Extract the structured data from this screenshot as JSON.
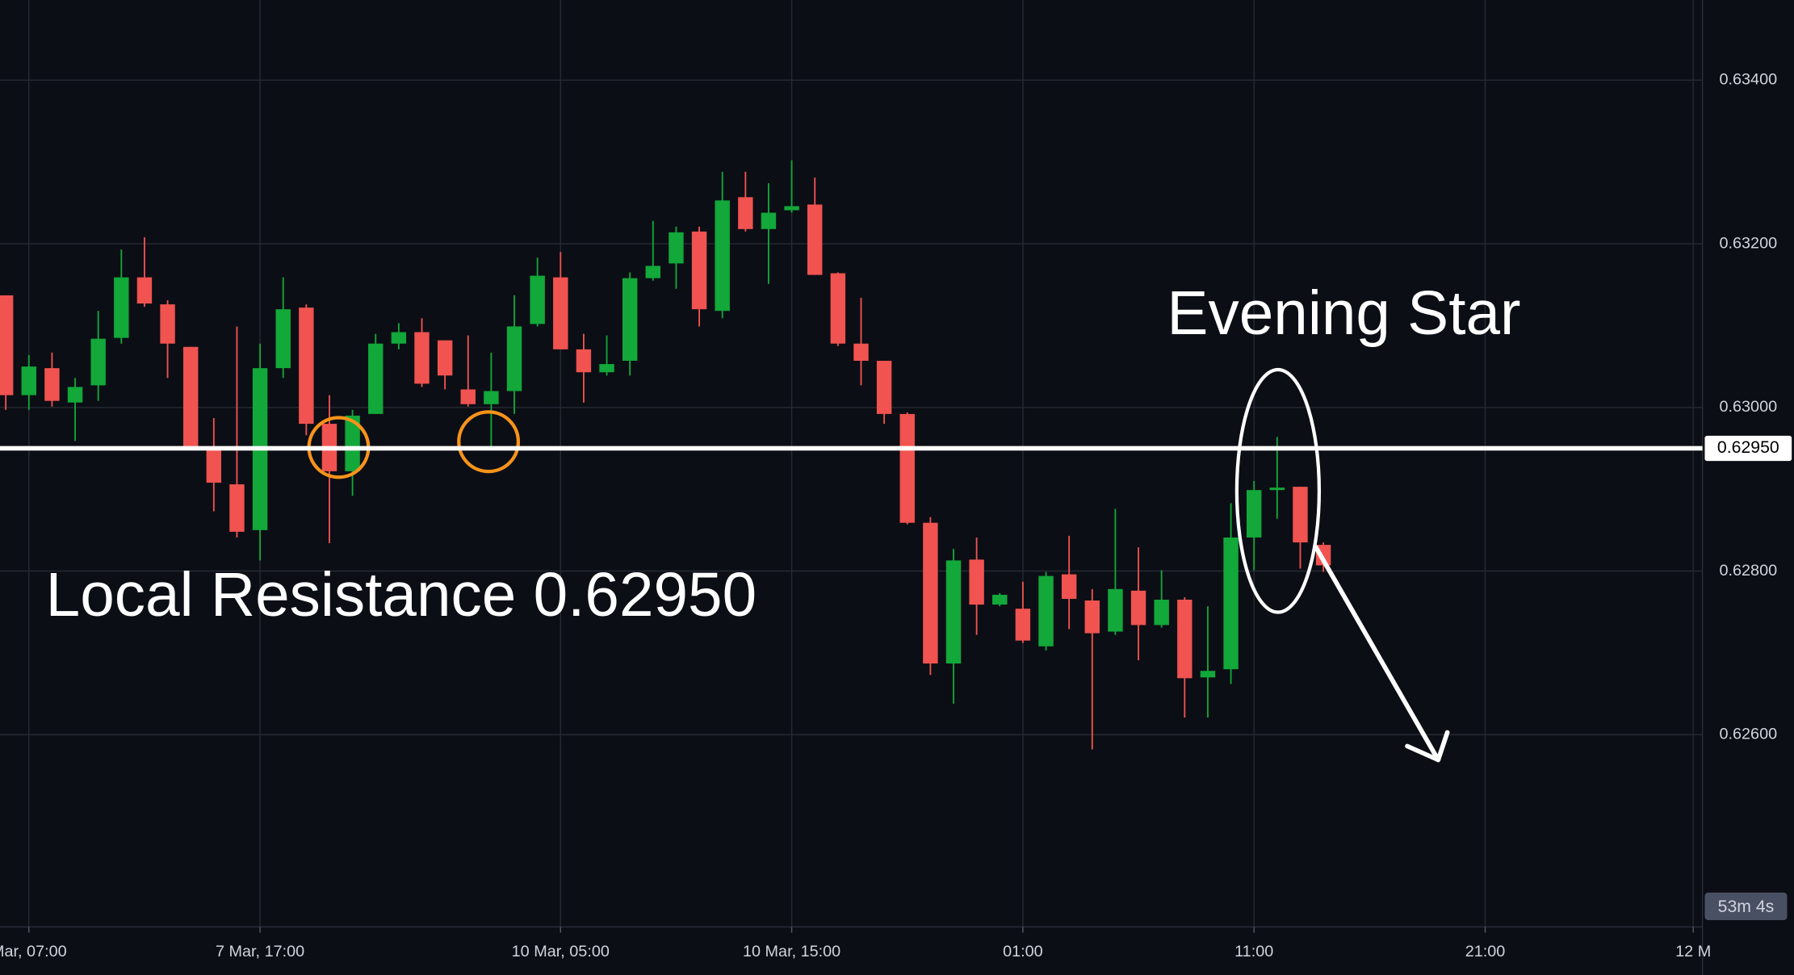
{
  "chart_data": {
    "type": "candlestick",
    "title": "Evening Star",
    "subtitle": "Local Resistance 0.62950",
    "countdown": "53m 4s",
    "resistance": {
      "value": 0.6295,
      "label": "0.62950"
    },
    "up_color": "#12a83a",
    "down_color": "#f05350",
    "grid": true,
    "x": [
      0,
      1,
      2,
      3,
      4,
      5,
      6,
      7,
      8,
      9,
      10,
      11,
      12,
      13,
      14,
      15,
      16,
      17,
      18,
      19,
      20,
      21,
      22,
      23,
      24,
      25,
      26,
      27,
      28,
      29,
      30,
      31,
      32,
      33,
      34,
      35,
      36,
      37,
      38,
      39,
      40,
      41,
      42,
      43,
      44,
      45,
      46,
      47,
      48,
      49,
      50,
      51,
      52,
      53,
      54,
      55,
      56,
      57
    ],
    "open": [
      0.63137,
      0.63015,
      0.63048,
      0.63006,
      0.63027,
      0.63085,
      0.63159,
      0.63126,
      0.63074,
      0.6295,
      0.62906,
      0.6285,
      0.63048,
      0.63122,
      0.6298,
      0.62922,
      0.62992,
      0.63078,
      0.63092,
      0.63082,
      0.63022,
      0.63004,
      0.6302,
      0.63102,
      0.63159,
      0.63071,
      0.63043,
      0.63057,
      0.63158,
      0.63176,
      0.63215,
      0.63118,
      0.63257,
      0.63218,
      0.63241,
      0.63248,
      0.63164,
      0.63078,
      0.63057,
      0.62992,
      0.62859,
      0.62687,
      0.62814,
      0.62759,
      0.62754,
      0.62708,
      0.62796,
      0.62764,
      0.62726,
      0.62776,
      0.62734,
      0.62765,
      0.6267,
      0.6268,
      0.62841,
      0.62899,
      0.62903,
      0.62832
    ],
    "high": [
      0.63137,
      0.63064,
      0.63067,
      0.63036,
      0.63118,
      0.63193,
      0.63208,
      0.63131,
      0.63074,
      0.62987,
      0.63099,
      0.63078,
      0.63159,
      0.63126,
      0.63015,
      0.62997,
      0.6309,
      0.63103,
      0.63109,
      0.63082,
      0.63088,
      0.63067,
      0.63137,
      0.63183,
      0.6319,
      0.6309,
      0.63088,
      0.63165,
      0.63228,
      0.63221,
      0.63221,
      0.63288,
      0.63288,
      0.63274,
      0.63302,
      0.63281,
      0.63165,
      0.63134,
      0.63057,
      0.62994,
      0.62866,
      0.62827,
      0.62841,
      0.62773,
      0.62787,
      0.62799,
      0.62843,
      0.62778,
      0.62876,
      0.62829,
      0.62801,
      0.62768,
      0.62757,
      0.62883,
      0.6291,
      0.62964,
      0.62903,
      0.62835
    ],
    "low": [
      0.62997,
      0.62997,
      0.63001,
      0.62959,
      0.63008,
      0.63078,
      0.63123,
      0.63036,
      0.6295,
      0.62873,
      0.62841,
      0.62813,
      0.63036,
      0.62966,
      0.62834,
      0.62892,
      0.62992,
      0.63071,
      0.63025,
      0.63022,
      0.63001,
      0.62952,
      0.62992,
      0.63099,
      0.63071,
      0.63006,
      0.63039,
      0.63039,
      0.63155,
      0.63145,
      0.63099,
      0.63109,
      0.63215,
      0.63151,
      0.63238,
      0.63162,
      0.63075,
      0.63027,
      0.6298,
      0.62857,
      0.62673,
      0.62638,
      0.62722,
      0.62757,
      0.62712,
      0.62703,
      0.62729,
      0.62582,
      0.62722,
      0.62691,
      0.62731,
      0.62621,
      0.62621,
      0.62662,
      0.62801,
      0.62864,
      0.62803,
      0.62799
    ],
    "close": [
      0.63015,
      0.6305,
      0.63008,
      0.63025,
      0.63084,
      0.63159,
      0.63127,
      0.63078,
      0.62952,
      0.62908,
      0.62848,
      0.63048,
      0.6312,
      0.6298,
      0.62922,
      0.6299,
      0.63078,
      0.63092,
      0.63029,
      0.63039,
      0.63004,
      0.6302,
      0.63099,
      0.63161,
      0.63071,
      0.63043,
      0.63053,
      0.63158,
      0.63173,
      0.63214,
      0.6312,
      0.63253,
      0.63218,
      0.63238,
      0.63246,
      0.63162,
      0.63078,
      0.63057,
      0.62992,
      0.62859,
      0.62687,
      0.62813,
      0.62759,
      0.62771,
      0.62715,
      0.62794,
      0.62766,
      0.62724,
      0.62778,
      0.62734,
      0.62765,
      0.62669,
      0.62678,
      0.62841,
      0.62899,
      0.62902,
      0.62835,
      0.62807
    ],
    "xlim": [
      -0.25,
      73.4
    ],
    "xticks": [
      {
        "value": 1,
        "label": "Mar, 07:00"
      },
      {
        "value": 11,
        "label": "7 Mar, 17:00"
      },
      {
        "value": 24,
        "label": "10 Mar, 05:00"
      },
      {
        "value": 34,
        "label": "10 Mar, 15:00"
      },
      {
        "value": 44,
        "label": "01:00"
      },
      {
        "value": 54,
        "label": "11:00"
      },
      {
        "value": 64,
        "label": "21:00"
      },
      {
        "value": 73,
        "label": "12 M"
      }
    ],
    "ylim": [
      0.62365,
      0.63498
    ],
    "yticks": [
      {
        "value": 0.626,
        "label": "0.62600"
      },
      {
        "value": 0.628,
        "label": "0.62800"
      },
      {
        "value": 0.63,
        "label": "0.63000"
      },
      {
        "value": 0.632,
        "label": "0.63200"
      },
      {
        "value": 0.634,
        "label": "0.63400"
      }
    ]
  }
}
